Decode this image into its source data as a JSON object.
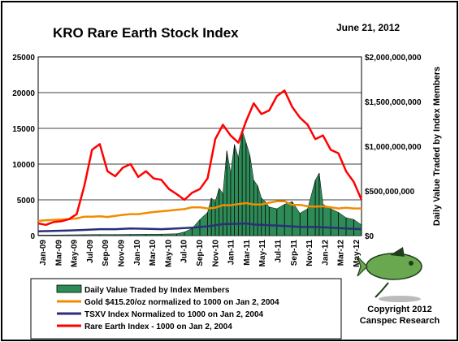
{
  "colors": {
    "background": "#ffffff",
    "bars": "#2e8b57",
    "gold": "#f28c00",
    "tsxv": "#2b2f7a",
    "rare_earth": "#ff0000",
    "logo_body": "#6aa84f",
    "logo_dark": "#1f3d1a"
  },
  "chart_data": {
    "type": "line",
    "title": "KRO Rare Earth Stock Index",
    "date": "June 21, 2012",
    "xlabel": "",
    "ylabel": "",
    "y2label": "Daily Value Traded by Index Members",
    "x_ticks": [
      "Jan-09",
      "Mar-09",
      "May-09",
      "Jul-09",
      "Sep-09",
      "Nov-09",
      "Jan-10",
      "Mar-10",
      "May-10",
      "Jul-10",
      "Sep-10",
      "Nov-10",
      "Jan-11",
      "Mar-11",
      "May-11",
      "Jul-11",
      "Sep-11",
      "Nov-11",
      "Jan-12",
      "Mar-12",
      "May-12"
    ],
    "y_ticks": [
      "25000",
      "20000",
      "15000",
      "10000",
      "5000",
      "0"
    ],
    "y2_ticks": [
      "$2,000,000,000",
      "$1,500,000,000",
      "$1,000,000,000",
      "$500,000,000",
      "$0"
    ],
    "ylim": [
      0,
      25000
    ],
    "y2lim": [
      0,
      2000000000
    ],
    "xlim": [
      0,
      42
    ],
    "grid": "horizontal",
    "legend_position": "bottom-left",
    "copyright": [
      "Copyright 2012",
      "Canspec Research"
    ],
    "series": [
      {
        "name": "Daily Value Traded by Index Members",
        "kind": "bar",
        "axis": "right",
        "values": [
          [
            0,
            5000000
          ],
          [
            2,
            6000000
          ],
          [
            4,
            8000000
          ],
          [
            6,
            10000000
          ],
          [
            8,
            12000000
          ],
          [
            10,
            12000000
          ],
          [
            12,
            14000000
          ],
          [
            14,
            15000000
          ],
          [
            16,
            16000000
          ],
          [
            18,
            20000000
          ],
          [
            19,
            40000000
          ],
          [
            20,
            80000000
          ],
          [
            21,
            180000000
          ],
          [
            22,
            260000000
          ],
          [
            22.5,
            420000000
          ],
          [
            23,
            380000000
          ],
          [
            23.5,
            530000000
          ],
          [
            24,
            470000000
          ],
          [
            24.5,
            950000000
          ],
          [
            25,
            700000000
          ],
          [
            25.5,
            1020000000
          ],
          [
            26,
            870000000
          ],
          [
            26.5,
            1180000000
          ],
          [
            27,
            1040000000
          ],
          [
            27.5,
            900000000
          ],
          [
            28,
            620000000
          ],
          [
            28.5,
            560000000
          ],
          [
            29,
            420000000
          ],
          [
            29.5,
            380000000
          ],
          [
            30,
            320000000
          ],
          [
            31,
            300000000
          ],
          [
            32,
            350000000
          ],
          [
            33,
            380000000
          ],
          [
            34,
            250000000
          ],
          [
            35,
            300000000
          ],
          [
            36,
            620000000
          ],
          [
            36.5,
            700000000
          ],
          [
            37,
            350000000
          ],
          [
            38,
            300000000
          ],
          [
            39,
            260000000
          ],
          [
            40,
            200000000
          ],
          [
            41,
            180000000
          ],
          [
            42,
            120000000
          ]
        ]
      },
      {
        "name": "Gold $415.20/oz normalized to 1000 on Jan 2, 2004",
        "kind": "line",
        "axis": "left",
        "values": [
          [
            0,
            2050
          ],
          [
            1,
            2150
          ],
          [
            2,
            2200
          ],
          [
            3,
            2250
          ],
          [
            4,
            2300
          ],
          [
            5,
            2400
          ],
          [
            6,
            2650
          ],
          [
            7,
            2650
          ],
          [
            8,
            2700
          ],
          [
            9,
            2600
          ],
          [
            10,
            2750
          ],
          [
            11,
            2900
          ],
          [
            12,
            3000
          ],
          [
            13,
            3000
          ],
          [
            14,
            3150
          ],
          [
            15,
            3300
          ],
          [
            16,
            3400
          ],
          [
            17,
            3500
          ],
          [
            18,
            3600
          ],
          [
            19,
            3700
          ],
          [
            20,
            3950
          ],
          [
            21,
            3950
          ],
          [
            22,
            3800
          ],
          [
            23,
            3900
          ],
          [
            24,
            4250
          ],
          [
            25,
            4250
          ],
          [
            26,
            4400
          ],
          [
            27,
            4550
          ],
          [
            28,
            4350
          ],
          [
            29,
            4350
          ],
          [
            30,
            4600
          ],
          [
            31,
            4800
          ],
          [
            32,
            4800
          ],
          [
            33,
            4300
          ],
          [
            34,
            4300
          ],
          [
            35,
            4100
          ],
          [
            36,
            4050
          ],
          [
            37,
            4100
          ],
          [
            38,
            3950
          ],
          [
            39,
            3800
          ],
          [
            40,
            3900
          ],
          [
            41,
            3800
          ],
          [
            42,
            3800
          ]
        ]
      },
      {
        "name": "TSXV Index Normalized to 1000 on Jan 2, 2004",
        "kind": "line",
        "axis": "left",
        "values": [
          [
            0,
            600
          ],
          [
            2,
            650
          ],
          [
            4,
            700
          ],
          [
            6,
            800
          ],
          [
            8,
            900
          ],
          [
            10,
            900
          ],
          [
            12,
            1000
          ],
          [
            14,
            950
          ],
          [
            16,
            900
          ],
          [
            18,
            1000
          ],
          [
            20,
            1100
          ],
          [
            22,
            1300
          ],
          [
            24,
            1600
          ],
          [
            26,
            1650
          ],
          [
            27,
            1700
          ],
          [
            28,
            1550
          ],
          [
            30,
            1450
          ],
          [
            32,
            1350
          ],
          [
            34,
            1200
          ],
          [
            36,
            1200
          ],
          [
            38,
            1100
          ],
          [
            40,
            1000
          ],
          [
            42,
            900
          ]
        ]
      },
      {
        "name": "Rare Earth Index - 1000 on Jan 2, 2004",
        "kind": "line",
        "axis": "left",
        "values": [
          [
            0,
            1700
          ],
          [
            1,
            1500
          ],
          [
            2,
            1900
          ],
          [
            3,
            2000
          ],
          [
            4,
            2300
          ],
          [
            5,
            3000
          ],
          [
            6,
            7000
          ],
          [
            7,
            12000
          ],
          [
            8,
            12800
          ],
          [
            9,
            9000
          ],
          [
            10,
            8300
          ],
          [
            11,
            9500
          ],
          [
            12,
            10000
          ],
          [
            13,
            8200
          ],
          [
            14,
            9000
          ],
          [
            15,
            8000
          ],
          [
            16,
            7800
          ],
          [
            17,
            6500
          ],
          [
            18,
            5800
          ],
          [
            19,
            5000
          ],
          [
            20,
            6000
          ],
          [
            21,
            6500
          ],
          [
            22,
            8000
          ],
          [
            23,
            13500
          ],
          [
            24,
            15500
          ],
          [
            25,
            14000
          ],
          [
            26,
            13000
          ],
          [
            27,
            16000
          ],
          [
            28,
            18500
          ],
          [
            29,
            17000
          ],
          [
            30,
            17500
          ],
          [
            31,
            19500
          ],
          [
            32,
            20300
          ],
          [
            33,
            18000
          ],
          [
            34,
            16500
          ],
          [
            35,
            15500
          ],
          [
            36,
            13500
          ],
          [
            37,
            14000
          ],
          [
            38,
            12000
          ],
          [
            39,
            11500
          ],
          [
            40,
            9000
          ],
          [
            41,
            7500
          ],
          [
            42,
            5000
          ]
        ]
      }
    ]
  }
}
